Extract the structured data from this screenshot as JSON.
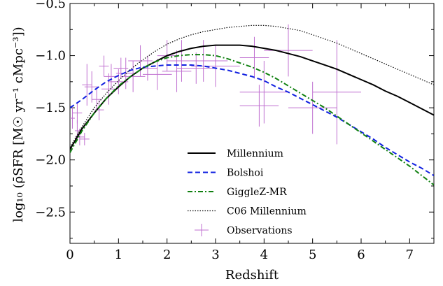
{
  "chart_data": {
    "type": "line",
    "xlabel": "Redshift",
    "ylabel": "log₁₀ (ρ̄SFR [M☉ yr⁻¹ cMpc⁻³])",
    "xlim": [
      0,
      7.5
    ],
    "ylim": [
      -2.8,
      -0.5
    ],
    "xticks": [
      0,
      1,
      2,
      3,
      4,
      5,
      6,
      7
    ],
    "xtick_labels": [
      "0",
      "1",
      "2",
      "3",
      "4",
      "5",
      "6",
      "7"
    ],
    "yticks": [
      -2.5,
      -2.0,
      -1.5,
      -1.0,
      -0.5
    ],
    "ytick_labels": [
      "−2.5",
      "−2.0",
      "−1.5",
      "−1.0",
      "−0.5"
    ],
    "grid": false,
    "legend_position": "lower-center",
    "series": [
      {
        "name": "Millennium",
        "color": "#000000",
        "style": "solid",
        "x": [
          0,
          0.25,
          0.5,
          0.75,
          1.0,
          1.25,
          1.5,
          1.75,
          2.0,
          2.25,
          2.5,
          2.75,
          3.0,
          3.25,
          3.5,
          3.75,
          4.0,
          4.25,
          4.5,
          4.75,
          5.0,
          5.25,
          5.5,
          5.75,
          6.0,
          6.25,
          6.5,
          6.75,
          7.0,
          7.25,
          7.5
        ],
        "y": [
          -1.9,
          -1.7,
          -1.55,
          -1.41,
          -1.3,
          -1.2,
          -1.12,
          -1.06,
          -1.0,
          -0.96,
          -0.93,
          -0.91,
          -0.9,
          -0.9,
          -0.9,
          -0.91,
          -0.93,
          -0.95,
          -0.98,
          -1.01,
          -1.05,
          -1.09,
          -1.13,
          -1.18,
          -1.23,
          -1.28,
          -1.34,
          -1.39,
          -1.45,
          -1.51,
          -1.57
        ]
      },
      {
        "name": "Bolshoi",
        "color": "#1020e0",
        "style": "dashed",
        "x": [
          0,
          0.25,
          0.5,
          0.75,
          1.0,
          1.25,
          1.5,
          1.75,
          2.0,
          2.25,
          2.5,
          2.75,
          3.0,
          3.25,
          3.5,
          3.75,
          4.0,
          4.25,
          4.5,
          4.75,
          5.0,
          5.25,
          5.5,
          5.75,
          6.0,
          6.25,
          6.5,
          6.75,
          7.0,
          7.25,
          7.5
        ],
        "y": [
          -1.5,
          -1.42,
          -1.33,
          -1.25,
          -1.19,
          -1.14,
          -1.11,
          -1.1,
          -1.09,
          -1.09,
          -1.09,
          -1.1,
          -1.12,
          -1.14,
          -1.17,
          -1.2,
          -1.24,
          -1.3,
          -1.35,
          -1.41,
          -1.47,
          -1.53,
          -1.59,
          -1.66,
          -1.73,
          -1.8,
          -1.88,
          -1.95,
          -2.02,
          -2.08,
          -2.15
        ]
      },
      {
        "name": "GiggleZ-MR",
        "color": "#108010",
        "style": "dashdot",
        "x": [
          0,
          0.25,
          0.5,
          0.75,
          1.0,
          1.25,
          1.5,
          1.75,
          2.0,
          2.25,
          2.5,
          2.75,
          3.0,
          3.25,
          3.5,
          3.75,
          4.0,
          4.25,
          4.5,
          4.75,
          5.0,
          5.25,
          5.5,
          5.75,
          6.0,
          6.25,
          6.5,
          6.75,
          7.0,
          7.25,
          7.5
        ],
        "y": [
          -1.93,
          -1.72,
          -1.55,
          -1.41,
          -1.29,
          -1.2,
          -1.12,
          -1.06,
          -1.02,
          -1.0,
          -0.99,
          -0.99,
          -1.0,
          -1.03,
          -1.07,
          -1.11,
          -1.16,
          -1.22,
          -1.29,
          -1.36,
          -1.43,
          -1.5,
          -1.58,
          -1.66,
          -1.74,
          -1.82,
          -1.9,
          -1.98,
          -2.06,
          -2.15,
          -2.24
        ]
      },
      {
        "name": "C06 Millennium",
        "color": "#000000",
        "style": "dotted",
        "x": [
          0,
          0.25,
          0.5,
          0.75,
          1.0,
          1.25,
          1.5,
          1.75,
          2.0,
          2.25,
          2.5,
          2.75,
          3.0,
          3.25,
          3.5,
          3.75,
          4.0,
          4.25,
          4.5,
          4.75,
          5.0,
          5.25,
          5.5,
          5.75,
          6.0,
          6.25,
          6.5,
          6.75,
          7.0,
          7.25,
          7.5
        ],
        "y": [
          -1.88,
          -1.68,
          -1.5,
          -1.36,
          -1.24,
          -1.13,
          -1.04,
          -0.96,
          -0.89,
          -0.84,
          -0.8,
          -0.77,
          -0.75,
          -0.73,
          -0.72,
          -0.71,
          -0.71,
          -0.72,
          -0.74,
          -0.76,
          -0.8,
          -0.84,
          -0.88,
          -0.93,
          -0.98,
          -1.03,
          -1.08,
          -1.13,
          -1.18,
          -1.23,
          -1.28
        ]
      }
    ],
    "observations": {
      "name": "Observations",
      "color": "#c070d0",
      "points": [
        {
          "x": 0.05,
          "y": -1.6,
          "xerr": 0.05,
          "yerr": 0.1
        },
        {
          "x": 0.15,
          "y": -1.55,
          "xerr": 0.1,
          "yerr": 0.1
        },
        {
          "x": 0.2,
          "y": -1.78,
          "xerr": 0.1,
          "yerr": 0.08
        },
        {
          "x": 0.3,
          "y": -1.8,
          "xerr": 0.1,
          "yerr": 0.06
        },
        {
          "x": 0.15,
          "y": -1.72,
          "xerr": 0.05,
          "yerr": 0.1
        },
        {
          "x": 0.35,
          "y": -1.28,
          "xerr": 0.1,
          "yerr": 0.2
        },
        {
          "x": 0.45,
          "y": -1.3,
          "xerr": 0.15,
          "yerr": 0.15
        },
        {
          "x": 0.55,
          "y": -1.42,
          "xerr": 0.1,
          "yerr": 0.1
        },
        {
          "x": 0.6,
          "y": -1.52,
          "xerr": 0.1,
          "yerr": 0.1
        },
        {
          "x": 0.7,
          "y": -1.1,
          "xerr": 0.1,
          "yerr": 0.1
        },
        {
          "x": 0.8,
          "y": -1.32,
          "xerr": 0.15,
          "yerr": 0.15
        },
        {
          "x": 0.85,
          "y": -1.2,
          "xerr": 0.15,
          "yerr": 0.12
        },
        {
          "x": 1.0,
          "y": -1.25,
          "xerr": 0.2,
          "yerr": 0.12
        },
        {
          "x": 1.05,
          "y": -1.12,
          "xerr": 0.15,
          "yerr": 0.1
        },
        {
          "x": 1.15,
          "y": -1.17,
          "xerr": 0.2,
          "yerr": 0.15
        },
        {
          "x": 1.3,
          "y": -1.2,
          "xerr": 0.25,
          "yerr": 0.15
        },
        {
          "x": 1.45,
          "y": -1.05,
          "xerr": 0.25,
          "yerr": 0.15
        },
        {
          "x": 1.6,
          "y": -1.12,
          "xerr": 0.2,
          "yerr": 0.12
        },
        {
          "x": 1.8,
          "y": -1.18,
          "xerr": 0.3,
          "yerr": 0.15
        },
        {
          "x": 2.0,
          "y": -1.0,
          "xerr": 0.2,
          "yerr": 0.15
        },
        {
          "x": 2.2,
          "y": -1.15,
          "xerr": 0.3,
          "yerr": 0.2
        },
        {
          "x": 2.3,
          "y": -1.05,
          "xerr": 0.3,
          "yerr": 0.2
        },
        {
          "x": 2.6,
          "y": -1.12,
          "xerr": 0.4,
          "yerr": 0.15
        },
        {
          "x": 2.75,
          "y": -1.05,
          "xerr": 0.5,
          "yerr": 0.2
        },
        {
          "x": 3.0,
          "y": -1.1,
          "xerr": 0.5,
          "yerr": 0.2
        },
        {
          "x": 3.8,
          "y": -1.02,
          "xerr": 0.3,
          "yerr": 0.2
        },
        {
          "x": 3.9,
          "y": -1.48,
          "xerr": 0.4,
          "yerr": 0.2
        },
        {
          "x": 4.0,
          "y": -1.35,
          "xerr": 0.5,
          "yerr": 0.3
        },
        {
          "x": 4.5,
          "y": -0.95,
          "xerr": 0.5,
          "yerr": 0.25
        },
        {
          "x": 5.0,
          "y": -1.5,
          "xerr": 0.5,
          "yerr": 0.25
        },
        {
          "x": 5.5,
          "y": -1.35,
          "xerr": 0.5,
          "yerr": 0.5
        }
      ]
    }
  }
}
